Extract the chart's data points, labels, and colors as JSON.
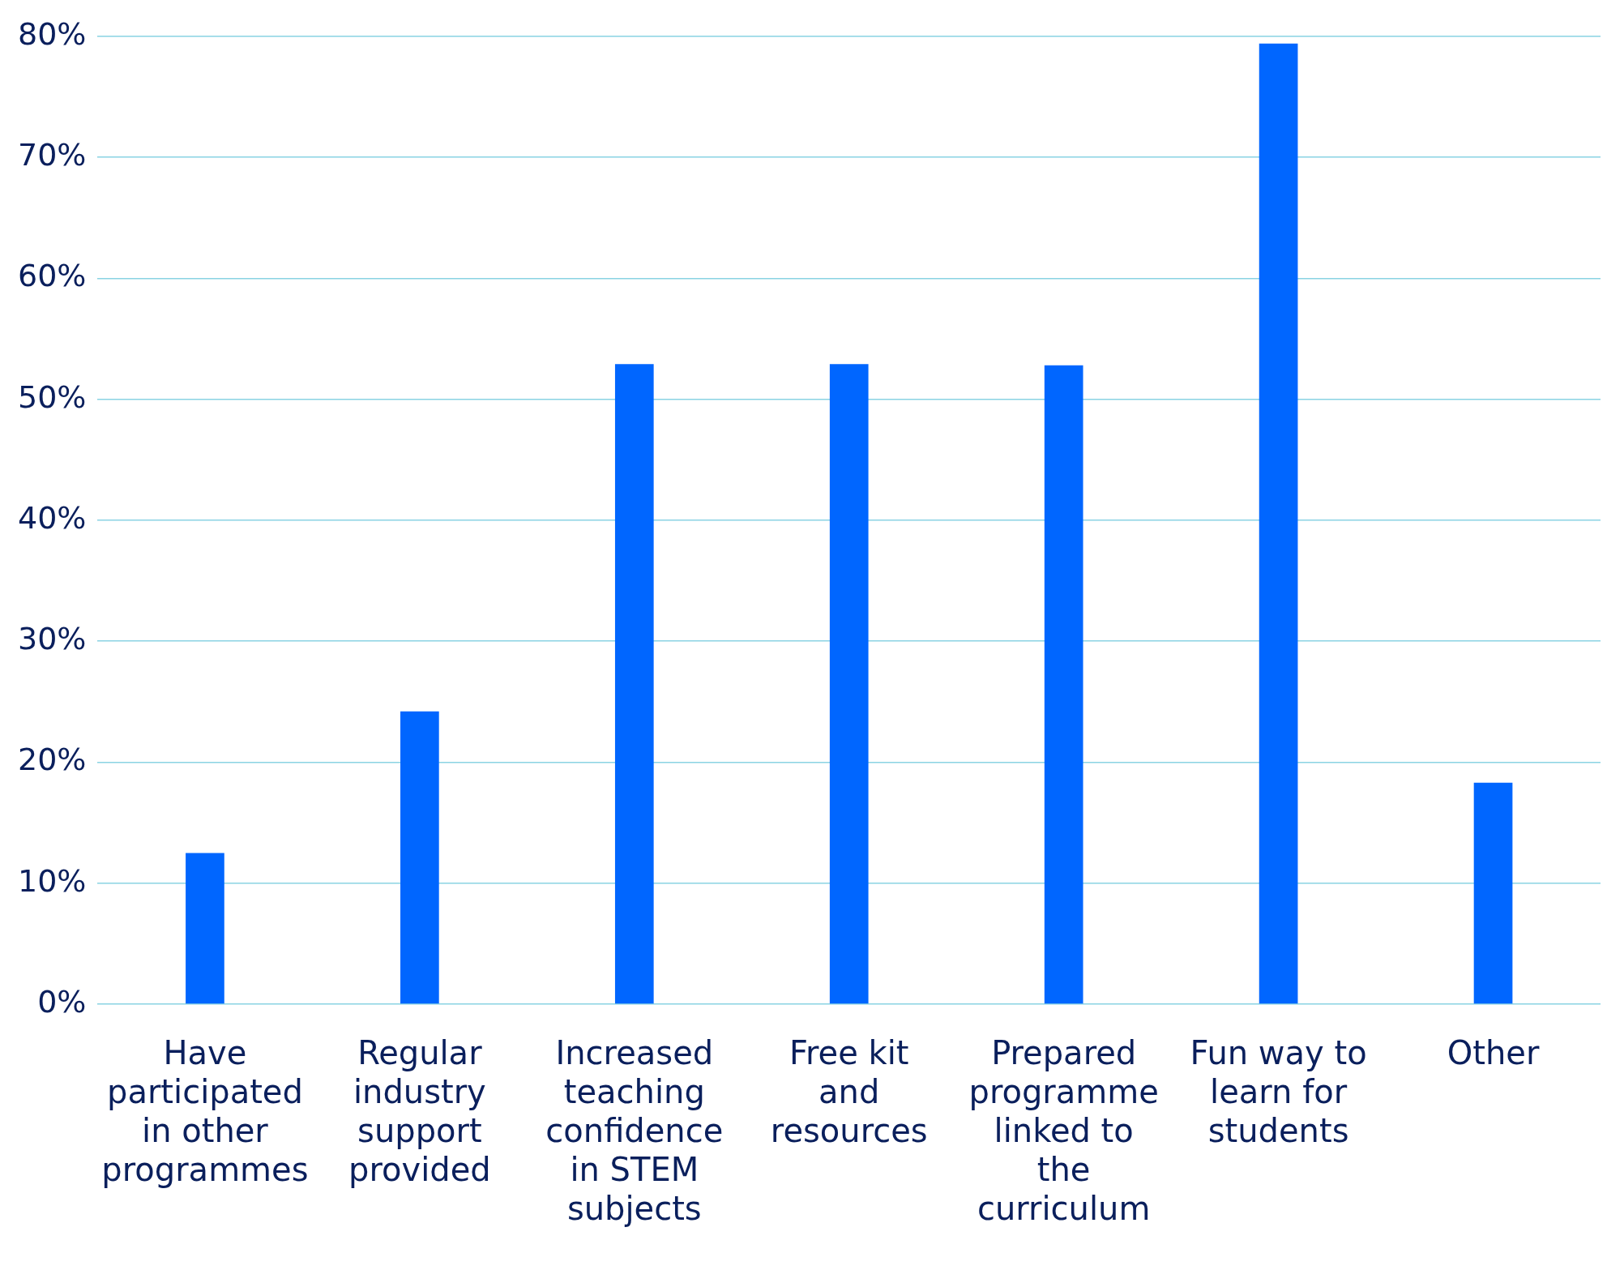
{
  "chart_data": {
    "type": "bar",
    "categories": [
      "Have participated in other programmes",
      "Regular industry support provided",
      "Increased teaching confidence in STEM subjects",
      "Free kit and resources",
      "Prepared programme linked to the curriculum",
      "Fun way to learn for students",
      "Other"
    ],
    "values": [
      12.5,
      24.2,
      52.9,
      52.9,
      52.8,
      79.4,
      18.3
    ],
    "color": "#0066ff",
    "ylim": [
      0,
      80
    ],
    "yticks": [
      {
        "value": 0,
        "label": "0%"
      },
      {
        "value": 10,
        "label": "10%"
      },
      {
        "value": 20,
        "label": "20%"
      },
      {
        "value": 30,
        "label": "30%"
      },
      {
        "value": 40,
        "label": "40%"
      },
      {
        "value": 50,
        "label": "50%"
      },
      {
        "value": 60,
        "label": "60%"
      },
      {
        "value": 70,
        "label": "70%"
      },
      {
        "value": 80,
        "label": "80%"
      }
    ],
    "grid": "y"
  }
}
